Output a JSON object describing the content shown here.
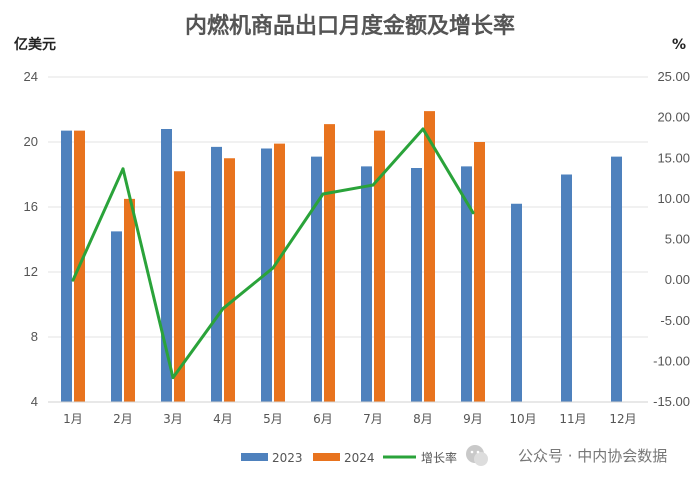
{
  "chart_data": {
    "type": "bar",
    "title": "内燃机商品出口月度金额及增长率",
    "ylabel": "亿美元",
    "y2label": "%",
    "categories": [
      "1月",
      "2月",
      "3月",
      "4月",
      "5月",
      "6月",
      "7月",
      "8月",
      "9月",
      "10月",
      "11月",
      "12月"
    ],
    "ylim": [
      4,
      24
    ],
    "yticks": [
      "4",
      "8",
      "12",
      "16",
      "20",
      "24"
    ],
    "y2lim": [
      -15,
      25
    ],
    "y2ticks": [
      "-15.00",
      "-10.00",
      "-5.00",
      "0.00",
      "5.00",
      "10.00",
      "15.00",
      "20.00",
      "25.00"
    ],
    "series": [
      {
        "name": "2023",
        "type": "bar",
        "axis": "left",
        "color": "#4E81BD",
        "values": [
          20.7,
          14.5,
          20.8,
          19.7,
          19.6,
          19.1,
          18.5,
          18.4,
          18.5,
          16.2,
          18.0,
          19.1
        ]
      },
      {
        "name": "2024",
        "type": "bar",
        "axis": "left",
        "color": "#E8731E",
        "values": [
          20.7,
          16.5,
          18.2,
          19.0,
          19.9,
          21.1,
          20.7,
          21.9,
          20.0,
          null,
          null,
          null
        ]
      },
      {
        "name": "增长率",
        "type": "line",
        "axis": "right",
        "color": "#2AA33A",
        "values": [
          0.0,
          13.7,
          -12.0,
          -3.5,
          1.5,
          10.6,
          11.7,
          18.6,
          8.3,
          null,
          null,
          null
        ]
      }
    ],
    "grid": true,
    "legend_position": "bottom"
  },
  "watermark": {
    "text": "公众号 · 中内协会数据"
  }
}
